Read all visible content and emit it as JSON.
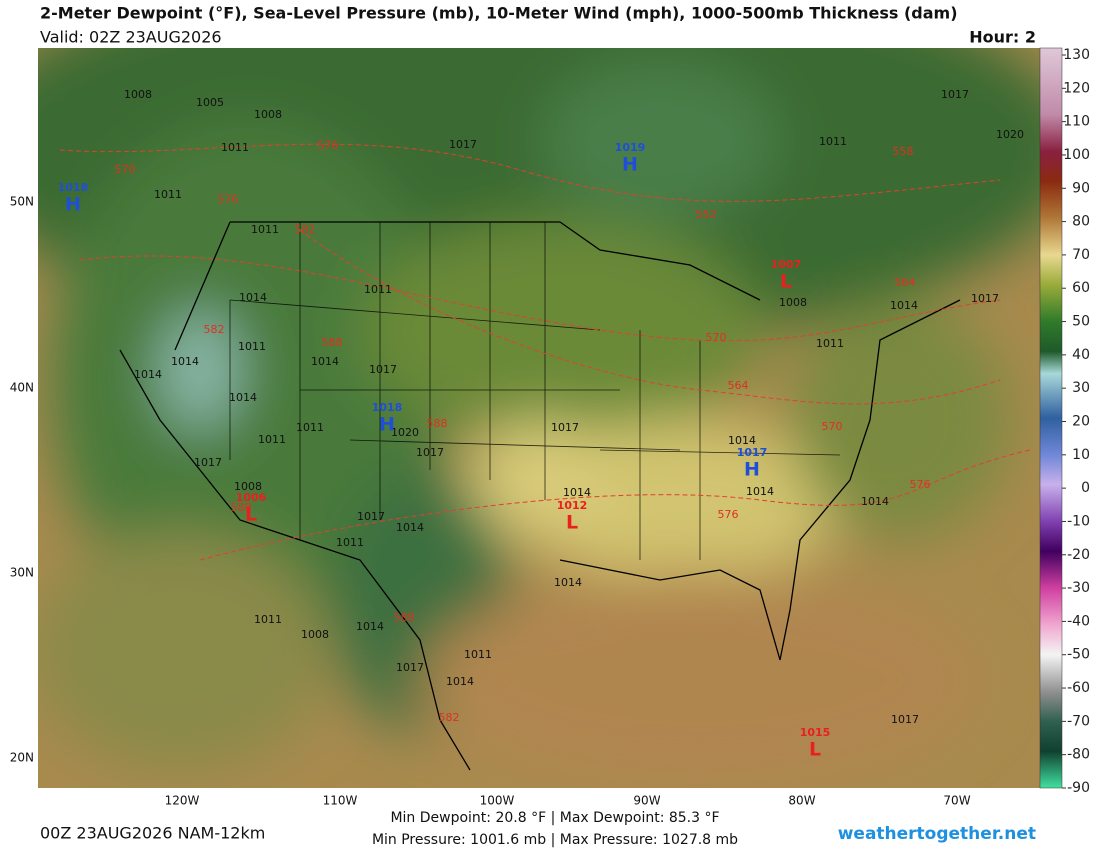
{
  "header": {
    "title": "2-Meter Dewpoint (°F), Sea-Level Pressure (mb), 10-Meter Wind (mph), 1000-500mb Thickness (dam)",
    "valid": "Valid: 02Z 23AUG2026",
    "hour": "Hour: 2"
  },
  "colorbar": {
    "range": [
      -90,
      130
    ],
    "ticks": [
      130,
      120,
      110,
      100,
      90,
      80,
      70,
      60,
      50,
      40,
      30,
      20,
      10,
      0,
      -10,
      -20,
      -30,
      -40,
      -50,
      -60,
      -70,
      -80,
      -90
    ]
  },
  "latitude_labels": [
    "50N",
    "40N",
    "30N",
    "20N"
  ],
  "longitude_labels": [
    "120W",
    "110W",
    "100W",
    "90W",
    "80W",
    "70W"
  ],
  "pressure_centers": [
    {
      "kind": "H",
      "pressure": "1019"
    },
    {
      "kind": "H",
      "pressure": "1018"
    },
    {
      "kind": "H",
      "pressure": "1018"
    },
    {
      "kind": "H",
      "pressure": "1017"
    },
    {
      "kind": "L",
      "pressure": "1007"
    },
    {
      "kind": "L",
      "pressure": "1006"
    },
    {
      "kind": "L",
      "pressure": "1012"
    },
    {
      "kind": "L",
      "pressure": "1015"
    }
  ],
  "isobar_labels": [
    "1008",
    "1005",
    "1008",
    "1011",
    "1011",
    "1017",
    "1011",
    "1017",
    "1020",
    "1011",
    "1014",
    "1011",
    "1011",
    "1014",
    "1014",
    "1014",
    "1017",
    "1014",
    "1011",
    "1011",
    "1020",
    "1017",
    "1017",
    "1008",
    "1017",
    "1014",
    "1011",
    "1017",
    "1014",
    "1014",
    "1014",
    "1014",
    "1014",
    "1011",
    "1008",
    "1014",
    "1017",
    "1014",
    "1011",
    "1017",
    "1011",
    "1008",
    "1014",
    "1017"
  ],
  "thickness_labels": [
    "570",
    "576",
    "576",
    "582",
    "558",
    "552",
    "564",
    "582",
    "588",
    "570",
    "564",
    "570",
    "588",
    "576",
    "576",
    "588",
    "588",
    "582"
  ],
  "footer": {
    "run": "00Z 23AUG2026 NAM-12km",
    "dewpoint_range": "Min Dewpoint: 20.8 °F | Max Dewpoint: 85.3 °F",
    "pressure_range": "Min Pressure: 1001.6 mb | Max Pressure: 1027.8 mb",
    "site": "weathertogether.net"
  }
}
